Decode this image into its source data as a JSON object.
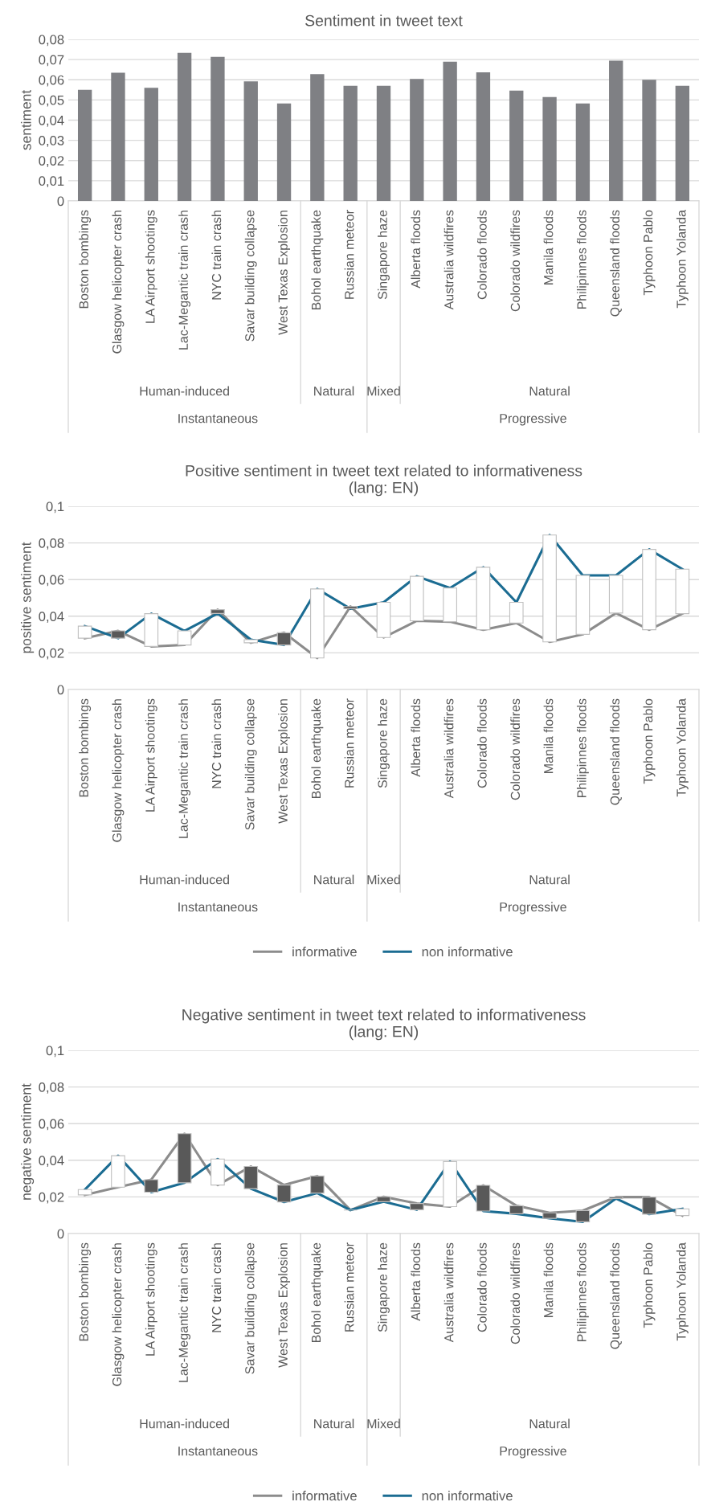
{
  "chart_data": [
    {
      "type": "bar",
      "title": "Sentiment in tweet text",
      "ylabel": "sentiment",
      "categories": [
        "Boston bombings",
        "Glasgow helicopter crash",
        "LA Airport shootings",
        "Lac-Megantic train crash",
        "NYC train crash",
        "Savar building collapse",
        "West Texas Explosion",
        "Bohol earthquake",
        "Russian meteor",
        "Singapore haze",
        "Alberta floods",
        "Australia wildfires",
        "Colorado floods",
        "Colorado wildfires",
        "Manila floods",
        "Philipinnes floods",
        "Queensland floods",
        "Typhoon Pablo",
        "Typhoon Yolanda"
      ],
      "values": [
        0.055,
        0.0635,
        0.056,
        0.0733,
        0.0713,
        0.0592,
        0.0483,
        0.0628,
        0.057,
        0.057,
        0.0604,
        0.069,
        0.0637,
        0.0546,
        0.0514,
        0.0483,
        0.0695,
        0.06,
        0.057
      ],
      "color": "#7f8084",
      "ylim": [
        0,
        0.08
      ],
      "yticks": [
        0,
        {
          "value": 0.01,
          "label": "0,01"
        },
        {
          "value": 0.02,
          "label": "0,02"
        },
        {
          "value": 0.03,
          "label": "0,03"
        },
        {
          "value": 0.04,
          "label": "0,04"
        },
        {
          "value": 0.05,
          "label": "0,05"
        },
        {
          "value": 0.06,
          "label": "0,06"
        },
        {
          "value": 0.07,
          "label": "0,07"
        },
        {
          "value": 0.08,
          "label": "0,08"
        }
      ],
      "grid": "y",
      "legend": false,
      "annotations": [
        "Human-induced",
        "Natural",
        "Mixed",
        "Natural",
        "Instantaneous",
        "Progressive"
      ]
    },
    {
      "type": "line",
      "title": "Positive sentiment in tweet text related to informativeness\n(lang: EN)",
      "ylabel": "positive sentiment",
      "categories": [
        "Boston bombings",
        "Glasgow helicopter crash",
        "LA Airport shootings",
        "Lac-Megantic train crash",
        "NYC train crash",
        "Savar building collapse",
        "West Texas Explosion",
        "Bohol earthquake",
        "Russian meteor",
        "Singapore haze",
        "Alberta floods",
        "Australia wildfires",
        "Colorado floods",
        "Colorado wildfires",
        "Manila floods",
        "Philipinnes floods",
        "Queensland floods",
        "Typhoon Pablo",
        "Typhoon Yolanda"
      ],
      "series": [
        {
          "name": "informative",
          "color": "#8c8c8c",
          "values": [
            0.028,
            0.032,
            0.0235,
            0.0243,
            0.0436,
            0.0255,
            0.031,
            0.0172,
            0.0453,
            0.0284,
            0.0375,
            0.037,
            0.0326,
            0.0363,
            0.026,
            0.0301,
            0.0417,
            0.0326,
            0.0414
          ]
        },
        {
          "name": "non informative",
          "color": "#1b6c92",
          "values": [
            0.0346,
            0.028,
            0.0414,
            0.032,
            0.0415,
            0.0272,
            0.0243,
            0.0549,
            0.0441,
            0.0476,
            0.0618,
            0.0554,
            0.0667,
            0.0476,
            0.0843,
            0.0623,
            0.0623,
            0.0765,
            0.0657
          ]
        },
        {
          "type": "bar",
          "base": [
            0.028,
            0.028,
            0.0235,
            0.0243,
            0.0415,
            0.0255,
            0.0243,
            0.0172,
            0.0441,
            0.0284,
            0.0375,
            0.037,
            0.0326,
            0.0363,
            0.026,
            0.0301,
            0.0417,
            0.0326,
            0.0414
          ],
          "values": [
            0.0066,
            0.004,
            0.0179,
            0.0077,
            0.0021,
            0.0017,
            0.0067,
            0.0377,
            0.0012,
            0.0192,
            0.0243,
            0.0184,
            0.0341,
            0.0113,
            0.0583,
            0.0322,
            0.0206,
            0.0439,
            0.0243
          ],
          "colors": [
            "#ffffff",
            "#595959",
            "#ffffff",
            "#ffffff",
            "#595959",
            "#ffffff",
            "#595959",
            "#ffffff",
            "#595959",
            "#ffffff",
            "#ffffff",
            "#ffffff",
            "#ffffff",
            "#ffffff",
            "#ffffff",
            "#ffffff",
            "#ffffff",
            "#ffffff",
            "#ffffff"
          ]
        }
      ],
      "ylim": [
        0,
        0.1
      ],
      "yticks": [
        0,
        {
          "value": 0.02,
          "label": "0,02"
        },
        {
          "value": 0.04,
          "label": "0,04"
        },
        {
          "value": 0.06,
          "label": "0,06"
        },
        {
          "value": 0.08,
          "label": "0,08"
        },
        {
          "value": 0.1,
          "label": "0,1"
        }
      ],
      "grid": "y",
      "legend": "bottom",
      "marker": "none",
      "line_style": "solid",
      "annotations": [
        "Human-induced",
        "Natural",
        "Mixed",
        "Natural",
        "Instantaneous",
        "Progressive"
      ]
    },
    {
      "type": "line",
      "title": "Negative sentiment in tweet text related to informativeness\n(lang: EN)",
      "ylabel": "negative sentiment",
      "categories": [
        "Boston bombings",
        "Glasgow helicopter crash",
        "LA Airport shootings",
        "Lac-Megantic train crash",
        "NYC train crash",
        "Savar building collapse",
        "West Texas Explosion",
        "Bohol earthquake",
        "Russian meteor",
        "Singapore haze",
        "Alberta floods",
        "Australia wildfires",
        "Colorado floods",
        "Colorado wildfires",
        "Manila floods",
        "Philipinnes floods",
        "Queensland floods",
        "Typhoon Pablo",
        "Typhoon Yolanda"
      ],
      "series": [
        {
          "name": "informative",
          "color": "#8c8c8c",
          "values": [
            0.0211,
            0.0253,
            0.0294,
            0.0545,
            0.0265,
            0.0366,
            0.0265,
            0.0314,
            0.0128,
            0.0201,
            0.0164,
            0.0147,
            0.0263,
            0.0152,
            0.0113,
            0.0125,
            0.0199,
            0.0199,
            0.0098
          ]
        },
        {
          "name": "non informative",
          "color": "#1b6c92",
          "values": [
            0.024,
            0.0425,
            0.0226,
            0.0277,
            0.0407,
            0.0245,
            0.0172,
            0.0221,
            0.0128,
            0.0174,
            0.013,
            0.0393,
            0.0123,
            0.0108,
            0.0083,
            0.0064,
            0.0191,
            0.0106,
            0.0135
          ]
        },
        {
          "type": "bar",
          "base": [
            0.0211,
            0.0253,
            0.0226,
            0.0277,
            0.0265,
            0.0245,
            0.0172,
            0.0221,
            0.0128,
            0.0174,
            0.013,
            0.0147,
            0.0123,
            0.0108,
            0.0083,
            0.0064,
            0.0191,
            0.0106,
            0.0098
          ],
          "values": [
            0.0029,
            0.0172,
            0.0068,
            0.0268,
            0.0142,
            0.0121,
            0.0093,
            0.0093,
            0,
            0.0027,
            0.0034,
            0.0246,
            0.014,
            0.0044,
            0.003,
            0.0061,
            0.0008,
            0.0093,
            0.0037
          ],
          "colors": [
            "#ffffff",
            "#ffffff",
            "#595959",
            "#595959",
            "#ffffff",
            "#595959",
            "#595959",
            "#595959",
            "#bfbfbf",
            "#595959",
            "#595959",
            "#ffffff",
            "#595959",
            "#595959",
            "#595959",
            "#595959",
            "#595959",
            "#595959",
            "#ffffff"
          ]
        }
      ],
      "ylim": [
        0,
        0.1
      ],
      "yticks": [
        0,
        {
          "value": 0.02,
          "label": "0,02"
        },
        {
          "value": 0.04,
          "label": "0,04"
        },
        {
          "value": 0.06,
          "label": "0,06"
        },
        {
          "value": 0.08,
          "label": "0,08"
        },
        {
          "value": 0.1,
          "label": "0,1"
        }
      ],
      "grid": "y",
      "legend": "bottom",
      "marker": "none",
      "line_style": "solid",
      "annotations": [
        "Human-induced",
        "Natural",
        "Mixed",
        "Natural",
        "Instantaneous",
        "Progressive"
      ]
    }
  ]
}
